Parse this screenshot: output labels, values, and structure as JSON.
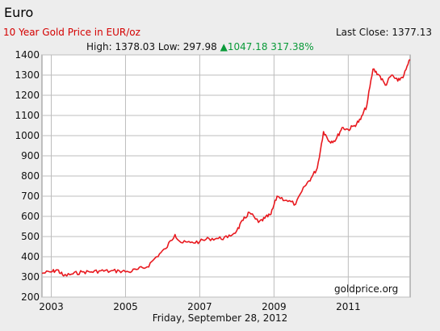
{
  "header": {
    "title": "Euro",
    "subtitle": "10 Year Gold Price in EUR/oz",
    "last_close_label": "Last Close:",
    "last_close_value": "1377.13",
    "high_label": "High:",
    "high_value": "1378.03",
    "low_label": "Low:",
    "low_value": "297.98",
    "change_value": "1047.18",
    "change_percent": "317.38%",
    "change_direction": "up-triangle-icon"
  },
  "footer": {
    "date": "Friday, September 28, 2012",
    "watermark": "goldprice.org"
  },
  "colors": {
    "line": "#e8191f",
    "grid": "#bdbdbd",
    "up": "#0a9a39",
    "subtitle": "#d40000",
    "background": "#ededed"
  },
  "chart_data": {
    "type": "line",
    "title": "10 Year Gold Price in EUR/oz",
    "xlabel": "",
    "ylabel": "",
    "xlim": [
      "2002-10",
      "2012-09"
    ],
    "ylim": [
      200,
      1400
    ],
    "y_ticks": [
      1400,
      1300,
      1200,
      1100,
      1000,
      900,
      800,
      700,
      600,
      500,
      400,
      300,
      200
    ],
    "x_ticks": [
      "2003",
      "2005",
      "2007",
      "2009",
      "2011"
    ],
    "grid": true,
    "legend": "none",
    "series": [
      {
        "x": [
          "2002-10",
          "2003-01",
          "2003-03",
          "2003-05",
          "2003-08",
          "2003-11",
          "2004-02",
          "2004-05",
          "2004-08",
          "2004-11",
          "2005-02",
          "2005-05",
          "2005-08",
          "2005-11",
          "2006-02",
          "2006-05",
          "2006-07",
          "2006-10",
          "2007-01",
          "2007-04",
          "2007-07",
          "2007-10",
          "2008-01",
          "2008-03",
          "2008-05",
          "2008-08",
          "2008-10",
          "2008-12",
          "2009-02",
          "2009-05",
          "2009-08",
          "2009-11",
          "2010-01",
          "2010-03",
          "2010-05",
          "2010-07",
          "2010-09",
          "2010-11",
          "2011-01",
          "2011-03",
          "2011-05",
          "2011-07",
          "2011-09",
          "2011-11",
          "2012-01",
          "2012-03",
          "2012-05",
          "2012-07",
          "2012-09"
        ],
        "y": [
          318,
          325,
          335,
          305,
          315,
          325,
          325,
          330,
          328,
          330,
          325,
          338,
          350,
          400,
          440,
          510,
          470,
          470,
          475,
          490,
          490,
          495,
          530,
          580,
          620,
          570,
          590,
          610,
          700,
          680,
          660,
          750,
          790,
          840,
          1020,
          970,
          980,
          1040,
          1030,
          1050,
          1080,
          1150,
          1330,
          1300,
          1250,
          1300,
          1270,
          1300,
          1377
        ]
      }
    ]
  }
}
